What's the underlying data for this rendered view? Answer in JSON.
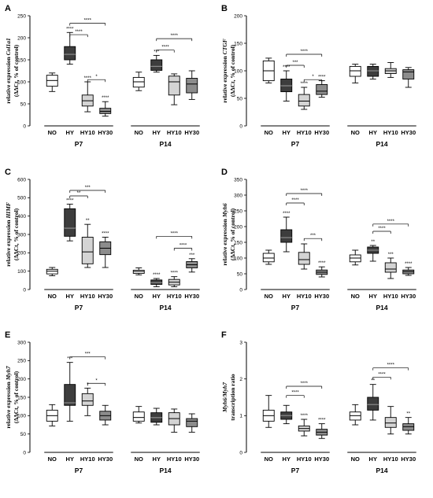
{
  "colors": {
    "NO": "#ffffff",
    "HY": "#3d3d3d",
    "HY10": "#d4d4d4",
    "HY30": "#8c8c8c"
  },
  "chart_data": [
    {
      "panel": "A",
      "type": "boxplot",
      "ylabel_pre": "relative expression ",
      "ylabel_gene": "Col1a1",
      "ylabel2": "(ΔΔCt, % of control)",
      "ylim": [
        0,
        250
      ],
      "yticks": [
        0,
        50,
        100,
        150,
        200,
        250
      ],
      "groups": [
        {
          "label": "P7",
          "boxes": [
            {
              "cat": "NO",
              "min": 78,
              "q1": 90,
              "median": 103,
              "q3": 115,
              "max": 120,
              "sig": ""
            },
            {
              "cat": "HY",
              "min": 140,
              "q1": 150,
              "median": 162,
              "q3": 180,
              "max": 212,
              "sig": "****"
            },
            {
              "cat": "HY10",
              "min": 32,
              "q1": 45,
              "median": 57,
              "q3": 70,
              "max": 100,
              "sig": "****"
            },
            {
              "cat": "HY30",
              "min": 22,
              "q1": 28,
              "median": 33,
              "q3": 40,
              "max": 55,
              "sig": "****"
            }
          ]
        },
        {
          "label": "P14",
          "boxes": [
            {
              "cat": "NO",
              "min": 80,
              "q1": 88,
              "median": 100,
              "q3": 110,
              "max": 122,
              "sig": ""
            },
            {
              "cat": "HY",
              "min": 122,
              "q1": 126,
              "median": 135,
              "q3": 150,
              "max": 160,
              "sig": "***"
            },
            {
              "cat": "HY10",
              "min": 48,
              "q1": 70,
              "median": 100,
              "q3": 113,
              "max": 118,
              "sig": ""
            },
            {
              "cat": "HY30",
              "min": 60,
              "q1": 75,
              "median": 95,
              "q3": 108,
              "max": 125,
              "sig": ""
            }
          ]
        }
      ],
      "brackets": [
        {
          "g": 0,
          "from": 1,
          "to": 3,
          "y": 233,
          "label": "****"
        },
        {
          "g": 0,
          "from": 1,
          "to": 2,
          "y": 207,
          "label": "****"
        },
        {
          "g": 0,
          "from": 2,
          "to": 3,
          "y": 105,
          "label": "*"
        },
        {
          "g": 1,
          "from": 1,
          "to": 3,
          "y": 198,
          "label": "****"
        },
        {
          "g": 1,
          "from": 1,
          "to": 2,
          "y": 172,
          "label": "****"
        }
      ]
    },
    {
      "panel": "B",
      "type": "boxplot",
      "ylabel_pre": "relative expression ",
      "ylabel_gene": "CTGF",
      "ylabel2": "(ΔΔCt, % of control)",
      "ylim": [
        0,
        200
      ],
      "yticks": [
        0,
        50,
        100,
        150,
        200
      ],
      "groups": [
        {
          "label": "P7",
          "boxes": [
            {
              "cat": "NO",
              "min": 78,
              "q1": 82,
              "median": 100,
              "q3": 118,
              "max": 123,
              "sig": ""
            },
            {
              "cat": "HY",
              "min": 45,
              "q1": 62,
              "median": 73,
              "q3": 85,
              "max": 100,
              "sig": "****"
            },
            {
              "cat": "HY10",
              "min": 30,
              "q1": 36,
              "median": 45,
              "q3": 57,
              "max": 70,
              "sig": "****"
            },
            {
              "cat": "HY30",
              "min": 52,
              "q1": 57,
              "median": 63,
              "q3": 75,
              "max": 82,
              "sig": "****"
            }
          ]
        },
        {
          "label": "P14",
          "boxes": [
            {
              "cat": "NO",
              "min": 78,
              "q1": 90,
              "median": 100,
              "q3": 108,
              "max": 112,
              "sig": ""
            },
            {
              "cat": "HY",
              "min": 85,
              "q1": 90,
              "median": 100,
              "q3": 108,
              "max": 112,
              "sig": ""
            },
            {
              "cat": "HY10",
              "min": 88,
              "q1": 95,
              "median": 100,
              "q3": 104,
              "max": 115,
              "sig": ""
            },
            {
              "cat": "HY30",
              "min": 70,
              "q1": 85,
              "median": 98,
              "q3": 102,
              "max": 106,
              "sig": ""
            }
          ]
        }
      ],
      "brackets": [
        {
          "g": 0,
          "from": 1,
          "to": 3,
          "y": 130,
          "label": "****"
        },
        {
          "g": 0,
          "from": 1,
          "to": 2,
          "y": 110,
          "label": "***"
        },
        {
          "g": 0,
          "from": 2,
          "to": 3,
          "y": 84,
          "label": "*"
        }
      ]
    },
    {
      "panel": "C",
      "type": "boxplot",
      "ylabel_pre": "relative expression ",
      "ylabel_gene": "HIMF",
      "ylabel2": "(ΔΔCt, % of control)",
      "ylim": [
        0,
        600
      ],
      "yticks": [
        0,
        100,
        200,
        300,
        400,
        500,
        600
      ],
      "groups": [
        {
          "label": "P7",
          "boxes": [
            {
              "cat": "NO",
              "min": 75,
              "q1": 85,
              "median": 100,
              "q3": 110,
              "max": 120,
              "sig": ""
            },
            {
              "cat": "HY",
              "min": 265,
              "q1": 290,
              "median": 335,
              "q3": 440,
              "max": 465,
              "sig": "****"
            },
            {
              "cat": "HY10",
              "min": 120,
              "q1": 140,
              "median": 205,
              "q3": 285,
              "max": 355,
              "sig": "**"
            },
            {
              "cat": "HY30",
              "min": 120,
              "q1": 190,
              "median": 225,
              "q3": 260,
              "max": 285,
              "sig": "****"
            }
          ]
        },
        {
          "label": "P14",
          "boxes": [
            {
              "cat": "NO",
              "min": 80,
              "q1": 88,
              "median": 98,
              "q3": 105,
              "max": 118,
              "sig": ""
            },
            {
              "cat": "HY",
              "min": 15,
              "q1": 28,
              "median": 37,
              "q3": 52,
              "max": 60,
              "sig": "****"
            },
            {
              "cat": "HY10",
              "min": 15,
              "q1": 25,
              "median": 40,
              "q3": 55,
              "max": 70,
              "sig": "****"
            },
            {
              "cat": "HY30",
              "min": 95,
              "q1": 118,
              "median": 135,
              "q3": 152,
              "max": 168,
              "sig": "***"
            }
          ]
        }
      ],
      "brackets": [
        {
          "g": 0,
          "from": 1,
          "to": 3,
          "y": 540,
          "label": "***"
        },
        {
          "g": 0,
          "from": 1,
          "to": 2,
          "y": 510,
          "label": "**"
        },
        {
          "g": 1,
          "from": 1,
          "to": 3,
          "y": 290,
          "label": "****"
        },
        {
          "g": 1,
          "from": 2,
          "to": 3,
          "y": 225,
          "label": "****"
        }
      ]
    },
    {
      "panel": "D",
      "type": "boxplot",
      "ylabel_pre": "relative expression ",
      "ylabel_gene": "Myh6",
      "ylabel2": "(ΔΔCt, % of control)",
      "ylim": [
        0,
        350
      ],
      "yticks": [
        0,
        50,
        100,
        150,
        200,
        250,
        300,
        350
      ],
      "groups": [
        {
          "label": "P7",
          "boxes": [
            {
              "cat": "NO",
              "min": 80,
              "q1": 88,
              "median": 100,
              "q3": 115,
              "max": 125,
              "sig": ""
            },
            {
              "cat": "HY",
              "min": 120,
              "q1": 150,
              "median": 165,
              "q3": 190,
              "max": 230,
              "sig": "****"
            },
            {
              "cat": "HY10",
              "min": 65,
              "q1": 80,
              "median": 95,
              "q3": 118,
              "max": 145,
              "sig": ""
            },
            {
              "cat": "HY30",
              "min": 40,
              "q1": 48,
              "median": 55,
              "q3": 62,
              "max": 72,
              "sig": "****"
            }
          ]
        },
        {
          "label": "P14",
          "boxes": [
            {
              "cat": "NO",
              "min": 78,
              "q1": 88,
              "median": 100,
              "q3": 110,
              "max": 125,
              "sig": ""
            },
            {
              "cat": "HY",
              "min": 90,
              "q1": 115,
              "median": 125,
              "q3": 135,
              "max": 140,
              "sig": "**"
            },
            {
              "cat": "HY10",
              "min": 35,
              "q1": 55,
              "median": 65,
              "q3": 85,
              "max": 100,
              "sig": "***"
            },
            {
              "cat": "HY30",
              "min": 45,
              "q1": 50,
              "median": 57,
              "q3": 62,
              "max": 70,
              "sig": "****"
            }
          ]
        }
      ],
      "brackets": [
        {
          "g": 0,
          "from": 1,
          "to": 3,
          "y": 305,
          "label": "****"
        },
        {
          "g": 0,
          "from": 1,
          "to": 2,
          "y": 275,
          "label": "****"
        },
        {
          "g": 0,
          "from": 2,
          "to": 3,
          "y": 162,
          "label": "***"
        },
        {
          "g": 1,
          "from": 1,
          "to": 3,
          "y": 208,
          "label": "****"
        },
        {
          "g": 1,
          "from": 1,
          "to": 2,
          "y": 185,
          "label": "****"
        }
      ]
    },
    {
      "panel": "E",
      "type": "boxplot",
      "ylabel_pre": "relative expression ",
      "ylabel_gene": "Myh7",
      "ylabel2": "(ΔΔCt, % of control)",
      "ylim": [
        0,
        300
      ],
      "yticks": [
        0,
        50,
        100,
        150,
        200,
        250,
        300
      ],
      "groups": [
        {
          "label": "P7",
          "boxes": [
            {
              "cat": "NO",
              "min": 72,
              "q1": 85,
              "median": 100,
              "q3": 115,
              "max": 130,
              "sig": ""
            },
            {
              "cat": "HY",
              "min": 85,
              "q1": 128,
              "median": 135,
              "q3": 185,
              "max": 245,
              "sig": "***"
            },
            {
              "cat": "HY10",
              "min": 100,
              "q1": 128,
              "median": 140,
              "q3": 160,
              "max": 175,
              "sig": "*"
            },
            {
              "cat": "HY30",
              "min": 75,
              "q1": 88,
              "median": 100,
              "q3": 112,
              "max": 128,
              "sig": ""
            }
          ]
        },
        {
          "label": "P14",
          "boxes": [
            {
              "cat": "NO",
              "min": 80,
              "q1": 85,
              "median": 95,
              "q3": 110,
              "max": 125,
              "sig": ""
            },
            {
              "cat": "HY",
              "min": 75,
              "q1": 82,
              "median": 95,
              "q3": 108,
              "max": 120,
              "sig": ""
            },
            {
              "cat": "HY10",
              "min": 55,
              "q1": 75,
              "median": 92,
              "q3": 108,
              "max": 118,
              "sig": ""
            },
            {
              "cat": "HY30",
              "min": 55,
              "q1": 70,
              "median": 85,
              "q3": 92,
              "max": 105,
              "sig": ""
            }
          ]
        }
      ],
      "brackets": [
        {
          "g": 0,
          "from": 1,
          "to": 3,
          "y": 260,
          "label": "***"
        },
        {
          "g": 0,
          "from": 2,
          "to": 3,
          "y": 188,
          "label": "*"
        }
      ]
    },
    {
      "panel": "F",
      "type": "boxplot",
      "ylabel_pre": "",
      "ylabel_gene": "Myh6/Myh7",
      "ylabel2": "transcription ratio",
      "ylim": [
        0,
        3
      ],
      "yticks": [
        0,
        1,
        2,
        3
      ],
      "groups": [
        {
          "label": "P7",
          "boxes": [
            {
              "cat": "NO",
              "min": 0.68,
              "q1": 0.85,
              "median": 1.0,
              "q3": 1.15,
              "max": 1.55,
              "sig": ""
            },
            {
              "cat": "HY",
              "min": 0.78,
              "q1": 0.9,
              "median": 1.0,
              "q3": 1.1,
              "max": 1.28,
              "sig": ""
            },
            {
              "cat": "HY10",
              "min": 0.45,
              "q1": 0.58,
              "median": 0.65,
              "q3": 0.72,
              "max": 0.9,
              "sig": "****"
            },
            {
              "cat": "HY30",
              "min": 0.38,
              "q1": 0.47,
              "median": 0.55,
              "q3": 0.63,
              "max": 0.78,
              "sig": "****"
            }
          ]
        },
        {
          "label": "P14",
          "boxes": [
            {
              "cat": "NO",
              "min": 0.75,
              "q1": 0.88,
              "median": 1.0,
              "q3": 1.1,
              "max": 1.3,
              "sig": ""
            },
            {
              "cat": "HY",
              "min": 0.88,
              "q1": 1.15,
              "median": 1.3,
              "q3": 1.5,
              "max": 1.85,
              "sig": "**"
            },
            {
              "cat": "HY10",
              "min": 0.5,
              "q1": 0.68,
              "median": 0.8,
              "q3": 0.95,
              "max": 1.25,
              "sig": ""
            },
            {
              "cat": "HY30",
              "min": 0.5,
              "q1": 0.6,
              "median": 0.7,
              "q3": 0.78,
              "max": 0.95,
              "sig": "**"
            }
          ]
        }
      ],
      "brackets": [
        {
          "g": 0,
          "from": 1,
          "to": 3,
          "y": 1.8,
          "label": "****"
        },
        {
          "g": 0,
          "from": 1,
          "to": 2,
          "y": 1.55,
          "label": "****"
        },
        {
          "g": 1,
          "from": 1,
          "to": 3,
          "y": 2.3,
          "label": "****"
        },
        {
          "g": 1,
          "from": 1,
          "to": 2,
          "y": 2.05,
          "label": "****"
        }
      ]
    }
  ]
}
